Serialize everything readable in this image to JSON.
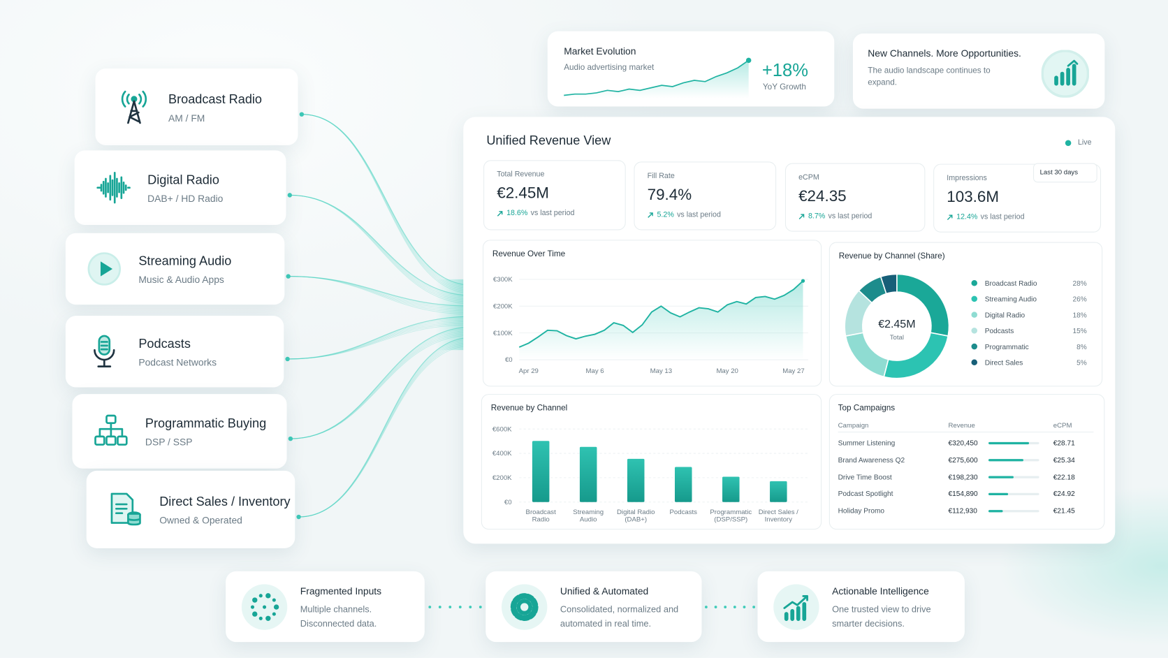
{
  "channels": [
    {
      "name": "Broadcast Radio",
      "detail": "AM / FM"
    },
    {
      "name": "Digital Radio",
      "detail": "DAB+ / HD Radio"
    },
    {
      "name": "Streaming Audio",
      "detail": "Music & Audio Apps"
    },
    {
      "name": "Podcasts",
      "detail": "Podcast Networks"
    },
    {
      "name": "Programmatic Buying",
      "detail": "DSP / SSP"
    },
    {
      "name": "Direct Sales / Inventory",
      "detail": "Owned & Operated"
    }
  ],
  "market_card": {
    "title": "Market Evolution",
    "subtitle": "Audio advertising market",
    "trend": [
      12,
      13,
      13,
      14,
      16,
      15,
      17,
      16,
      18,
      20,
      19,
      22,
      24,
      23,
      27,
      30,
      34,
      40
    ],
    "growth": "+18%",
    "growth_label": "YoY Growth"
  },
  "opportunity_card": {
    "title": "New Channels. More Opportunities.",
    "text": "The audio landscape continues to expand."
  },
  "dashboard": {
    "title": "Unified Revenue View",
    "status": "Live",
    "period": "Last 30 days",
    "kpis": [
      {
        "label": "Total Revenue",
        "value": "€2.45M",
        "change": "18.6%",
        "change_note": "vs last period"
      },
      {
        "label": "Fill Rate",
        "value": "79.4%",
        "change": "5.2%",
        "change_note": "vs last period"
      },
      {
        "label": "eCPM",
        "value": "€24.35",
        "change": "8.7%",
        "change_note": "vs last period"
      },
      {
        "label": "Impressions",
        "value": "103.6M",
        "change": "12.4%",
        "change_note": "vs last period"
      }
    ],
    "revenue_over_time": {
      "type": "line",
      "title": "Revenue Over Time",
      "x": [
        -1,
        0,
        1,
        2,
        3,
        4,
        5,
        6,
        7,
        8,
        9,
        10,
        11,
        12,
        13,
        14,
        15,
        16,
        17,
        18,
        19,
        20,
        21,
        22,
        23,
        24,
        25,
        26,
        27,
        28,
        29
      ],
      "values": [
        47000,
        62000,
        85000,
        110000,
        108000,
        90000,
        78000,
        88000,
        95000,
        110000,
        138000,
        128000,
        102000,
        130000,
        178000,
        200000,
        175000,
        160000,
        178000,
        194000,
        190000,
        178000,
        205000,
        217000,
        208000,
        232000,
        236000,
        226000,
        240000,
        262000,
        294000
      ],
      "xlim": [
        -1,
        29
      ],
      "xticks": [
        {
          "value": 0,
          "label": "Apr 29"
        },
        {
          "value": 7,
          "label": "May 6"
        },
        {
          "value": 14,
          "label": "May 13"
        },
        {
          "value": 21,
          "label": "May 20"
        },
        {
          "value": 28,
          "label": "May 27"
        }
      ],
      "ylim": [
        0,
        300000
      ],
      "yticks": [
        {
          "value": 0,
          "label": "€0"
        },
        {
          "value": 100000,
          "label": "€100K"
        },
        {
          "value": 200000,
          "label": "€200K"
        },
        {
          "value": 300000,
          "label": "€300K"
        }
      ],
      "color": "#1fb3a2",
      "grid": true
    },
    "revenue_share": {
      "type": "pie",
      "title": "Revenue by Channel (Share)",
      "center_value": "€2.45M",
      "center_label": "Total",
      "categories": [
        "Broadcast Radio",
        "Streaming Audio",
        "Digital Radio",
        "Podcasts",
        "Programmatic",
        "Direct Sales"
      ],
      "values": [
        28,
        26,
        18,
        15,
        8,
        5
      ],
      "value_labels": [
        "28%",
        "26%",
        "18%",
        "15%",
        "8%",
        "5%"
      ],
      "colors": [
        "#1aa898",
        "#2cc3b2",
        "#8fdcd2",
        "#b5e3df",
        "#1d8c8c",
        "#175f78"
      ]
    },
    "revenue_by_channel": {
      "type": "bar",
      "title": "Revenue by Channel",
      "categories": [
        "Broadcast Radio",
        "Streaming Audio",
        "Digital Radio (DAB+)",
        "Podcasts",
        "Programmatic (DSP/SSP)",
        "Direct Sales / Inventory"
      ],
      "values": [
        502000,
        453000,
        355000,
        288000,
        208000,
        171000
      ],
      "color": "#1fae9e",
      "ylim": [
        0,
        600000
      ],
      "yticks": [
        {
          "value": 0,
          "label": "€0"
        },
        {
          "value": 200000,
          "label": "€200K"
        },
        {
          "value": 400000,
          "label": "€400K"
        },
        {
          "value": 600000,
          "label": "€600K"
        }
      ],
      "grid": true
    },
    "top_campaigns": {
      "title": "Top Campaigns",
      "columns": [
        "Campaign",
        "Revenue",
        "eCPM"
      ],
      "rows": [
        {
          "campaign": "Summer Listening",
          "revenue": 320450,
          "revenue_label": "€320,450",
          "ecpm": "€28.71"
        },
        {
          "campaign": "Brand Awareness Q2",
          "revenue": 275600,
          "revenue_label": "€275,600",
          "ecpm": "€25.34"
        },
        {
          "campaign": "Drive Time Boost",
          "revenue": 198230,
          "revenue_label": "€198,230",
          "ecpm": "€22.18"
        },
        {
          "campaign": "Podcast Spotlight",
          "revenue": 154890,
          "revenue_label": "€154,890",
          "ecpm": "€24.92"
        },
        {
          "campaign": "Holiday Promo",
          "revenue": 112930,
          "revenue_label": "€112,930",
          "ecpm": "€21.45"
        }
      ]
    }
  },
  "steps": [
    {
      "title": "Fragmented Inputs",
      "text": "Multiple channels. Disconnected data."
    },
    {
      "title": "Unified & Automated",
      "text": "Consolidated, normalized and automated in real time."
    },
    {
      "title": "Actionable Intelligence",
      "text": "One trusted view to drive smarter decisions."
    }
  ]
}
